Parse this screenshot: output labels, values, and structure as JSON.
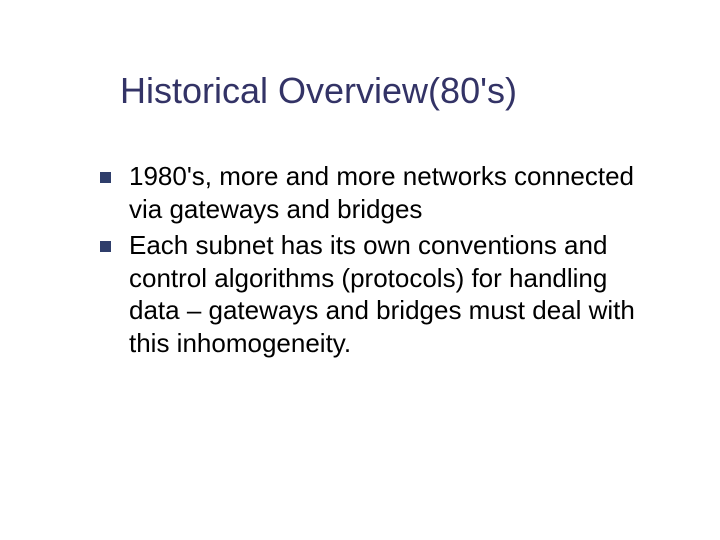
{
  "slide": {
    "title": "Historical Overview(80's)",
    "title_color": "#333366",
    "title_fontsize": 36,
    "background_color": "#ffffff",
    "bullets": [
      {
        "text": "1980's, more and more networks connected via gateways and bridges"
      },
      {
        "text": "Each subnet has its own conventions and control algorithms (protocols) for handling data – gateways and bridges must deal with this inhomogeneity."
      }
    ],
    "bullet_color": "#2f3e6b",
    "body_text_color": "#000000",
    "body_fontsize": 26
  }
}
